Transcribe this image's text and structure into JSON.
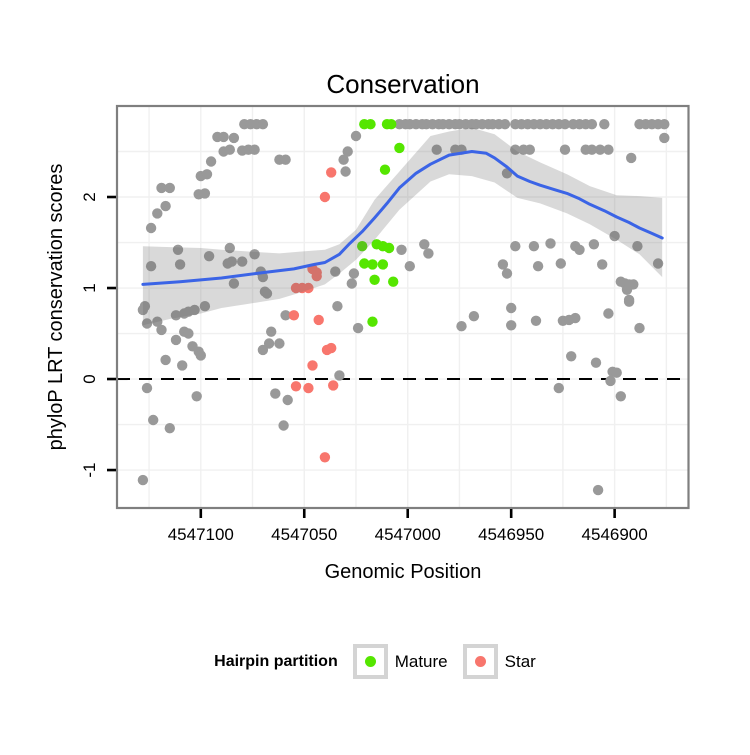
{
  "title": "Conservation",
  "axes": {
    "x": {
      "label": "Genomic Position",
      "domain": [
        4547140.5,
        4546864.3
      ],
      "ticks": [
        4547100,
        4547050,
        4547000,
        4546950,
        4546900
      ],
      "tick_labels": [
        "4547100",
        "4547050",
        "4547000",
        "4546950",
        "4546900"
      ],
      "grid_minor": [
        4547125,
        4547075,
        4547025,
        4546975,
        4546925,
        4546875
      ],
      "reversed": true
    },
    "y": {
      "label": "phyloP LRT conservation scores",
      "domain": [
        -1.417,
        3.0
      ],
      "ticks": [
        2,
        1,
        0,
        -1
      ],
      "tick_labels": [
        "2",
        "1",
        "0",
        "-1"
      ],
      "grid_minor": [
        2.5,
        1.5,
        0.5,
        -0.5
      ],
      "grid_major": [
        3,
        2,
        1,
        0,
        -1
      ]
    }
  },
  "legend": {
    "title": "Hairpin partition",
    "items": [
      {
        "label": "Mature",
        "color": "#55E600"
      },
      {
        "label": "Star",
        "color": "#F8766D"
      }
    ]
  },
  "colors": {
    "point_other": "#999999",
    "mature": "#55E600",
    "star": "#F8766D",
    "smooth_line": "#3B64E6",
    "ribbon": "rgba(102,102,102,0.25)",
    "panel_border": "#7F7F7F",
    "grid": "#F0F0F0",
    "zero_line": "#000000"
  },
  "chart_data": {
    "type": "scatter",
    "title": "Conservation",
    "xlabel": "Genomic Position",
    "ylabel": "phyloP LRT conservation scores",
    "x_range": [
      4547140,
      4546864
    ],
    "y_range": [
      -1.42,
      3.0
    ],
    "x_axis_reversed": true,
    "hline": {
      "y": 0,
      "style": "dashed"
    },
    "series": [
      {
        "name": "Other",
        "color": "#999999",
        "points": [
          [
            4547079,
            2.8
          ],
          [
            4547076,
            2.8
          ],
          [
            4547073,
            2.8
          ],
          [
            4547070,
            2.8
          ],
          [
            4547004,
            2.8
          ],
          [
            4547001,
            2.8
          ],
          [
            4546999,
            2.8
          ],
          [
            4546996,
            2.8
          ],
          [
            4546993,
            2.8
          ],
          [
            4546991,
            2.8
          ],
          [
            4546988,
            2.8
          ],
          [
            4546985,
            2.8
          ],
          [
            4546983,
            2.8
          ],
          [
            4546980,
            2.8
          ],
          [
            4546977,
            2.8
          ],
          [
            4546975,
            2.8
          ],
          [
            4546972,
            2.8
          ],
          [
            4546969,
            2.8
          ],
          [
            4546967,
            2.8
          ],
          [
            4546964,
            2.8
          ],
          [
            4546961,
            2.8
          ],
          [
            4546959,
            2.8
          ],
          [
            4546956,
            2.8
          ],
          [
            4546953,
            2.8
          ],
          [
            4546948,
            2.8
          ],
          [
            4546945,
            2.8
          ],
          [
            4546942,
            2.8
          ],
          [
            4546939,
            2.8
          ],
          [
            4546936,
            2.8
          ],
          [
            4546933,
            2.8
          ],
          [
            4546930,
            2.8
          ],
          [
            4546927,
            2.8
          ],
          [
            4546924,
            2.8
          ],
          [
            4546920,
            2.8
          ],
          [
            4546917,
            2.8
          ],
          [
            4546914,
            2.8
          ],
          [
            4546911,
            2.8
          ],
          [
            4546905,
            2.8
          ],
          [
            4546888,
            2.8
          ],
          [
            4546885,
            2.8
          ],
          [
            4546882,
            2.8
          ],
          [
            4546879,
            2.8
          ],
          [
            4546876,
            2.8
          ],
          [
            4547092,
            2.66
          ],
          [
            4547089,
            2.66
          ],
          [
            4547084,
            2.65
          ],
          [
            4547025,
            2.67
          ],
          [
            4546876,
            2.65
          ],
          [
            4547089,
            2.5
          ],
          [
            4547086,
            2.52
          ],
          [
            4547080,
            2.51
          ],
          [
            4547077,
            2.52
          ],
          [
            4547074,
            2.52
          ],
          [
            4546986,
            2.52
          ],
          [
            4546977,
            2.52
          ],
          [
            4546974,
            2.52
          ],
          [
            4546948,
            2.52
          ],
          [
            4546944,
            2.52
          ],
          [
            4546941,
            2.52
          ],
          [
            4546924,
            2.52
          ],
          [
            4546914,
            2.52
          ],
          [
            4546911,
            2.52
          ],
          [
            4546907,
            2.52
          ],
          [
            4546903,
            2.52
          ],
          [
            4546892,
            2.43
          ],
          [
            4547029,
            2.5
          ],
          [
            4547031,
            2.41
          ],
          [
            4547062,
            2.41
          ],
          [
            4547059,
            2.41
          ],
          [
            4547095,
            2.39
          ],
          [
            4547100,
            2.23
          ],
          [
            4547097,
            2.25
          ],
          [
            4547030,
            2.28
          ],
          [
            4546952,
            2.26
          ],
          [
            4547119,
            2.1
          ],
          [
            4547115,
            2.1
          ],
          [
            4547101,
            2.03
          ],
          [
            4547098,
            2.04
          ],
          [
            4547117,
            1.9
          ],
          [
            4547121,
            1.82
          ],
          [
            4547124,
            1.66
          ],
          [
            4546900,
            1.57
          ],
          [
            4547111,
            1.42
          ],
          [
            4547086,
            1.44
          ],
          [
            4547003,
            1.42
          ],
          [
            4546992,
            1.48
          ],
          [
            4546990,
            1.38
          ],
          [
            4546948,
            1.46
          ],
          [
            4546939,
            1.46
          ],
          [
            4546931,
            1.49
          ],
          [
            4546919,
            1.46
          ],
          [
            4546917,
            1.42
          ],
          [
            4546910,
            1.48
          ],
          [
            4546889,
            1.46
          ],
          [
            4547124,
            1.24
          ],
          [
            4547110,
            1.26
          ],
          [
            4547096,
            1.35
          ],
          [
            4547087,
            1.27
          ],
          [
            4547085,
            1.29
          ],
          [
            4547080,
            1.29
          ],
          [
            4547074,
            1.37
          ],
          [
            4546999,
            1.24
          ],
          [
            4546954,
            1.26
          ],
          [
            4546952,
            1.16
          ],
          [
            4546937,
            1.24
          ],
          [
            4546926,
            1.27
          ],
          [
            4546906,
            1.26
          ],
          [
            4546879,
            1.27
          ],
          [
            4547071,
            1.18
          ],
          [
            4547070,
            1.12
          ],
          [
            4547069,
            0.96
          ],
          [
            4547068,
            0.94
          ],
          [
            4547084,
            1.05
          ],
          [
            4547035,
            1.18
          ],
          [
            4547026,
            1.16
          ],
          [
            4547027,
            1.05
          ],
          [
            4546897,
            1.07
          ],
          [
            4546895,
            1.05
          ],
          [
            4546893,
            1.04
          ],
          [
            4546891,
            1.04
          ],
          [
            4546894,
            0.98
          ],
          [
            4546893,
            0.87
          ],
          [
            4547127,
            0.8
          ],
          [
            4547098,
            0.8
          ],
          [
            4547034,
            0.8
          ],
          [
            4546893,
            0.85
          ],
          [
            4547128,
            0.76
          ],
          [
            4547126,
            0.61
          ],
          [
            4547121,
            0.63
          ],
          [
            4547119,
            0.54
          ],
          [
            4547112,
            0.7
          ],
          [
            4547108,
            0.72
          ],
          [
            4547106,
            0.74
          ],
          [
            4547103,
            0.76
          ],
          [
            4547108,
            0.52
          ],
          [
            4547106,
            0.5
          ],
          [
            4547112,
            0.43
          ],
          [
            4547066,
            0.52
          ],
          [
            4547059,
            0.7
          ],
          [
            4547062,
            0.39
          ],
          [
            4547067,
            0.39
          ],
          [
            4547070,
            0.32
          ],
          [
            4547024,
            0.56
          ],
          [
            4546974,
            0.58
          ],
          [
            4546968,
            0.69
          ],
          [
            4546950,
            0.78
          ],
          [
            4546950,
            0.59
          ],
          [
            4546938,
            0.64
          ],
          [
            4546925,
            0.64
          ],
          [
            4546922,
            0.65
          ],
          [
            4546919,
            0.67
          ],
          [
            4546903,
            0.72
          ],
          [
            4546888,
            0.56
          ],
          [
            4547104,
            0.36
          ],
          [
            4547101,
            0.3
          ],
          [
            4547100,
            0.26
          ],
          [
            4547117,
            0.21
          ],
          [
            4547109,
            0.15
          ],
          [
            4546921,
            0.25
          ],
          [
            4546909,
            0.18
          ],
          [
            4546901,
            0.08
          ],
          [
            4546899,
            0.07
          ],
          [
            4547033,
            0.04
          ],
          [
            4546902,
            -0.02
          ],
          [
            4547126,
            -0.1
          ],
          [
            4547102,
            -0.19
          ],
          [
            4547064,
            -0.16
          ],
          [
            4547058,
            -0.23
          ],
          [
            4547060,
            -0.51
          ],
          [
            4547123,
            -0.45
          ],
          [
            4547115,
            -0.54
          ],
          [
            4546927,
            -0.1
          ],
          [
            4546897,
            -0.19
          ],
          [
            4547128,
            -1.11
          ],
          [
            4546908,
            -1.22
          ]
        ]
      },
      {
        "name": "Mature",
        "color": "#55E600",
        "points": [
          [
            4547021,
            2.8
          ],
          [
            4547018,
            2.8
          ],
          [
            4547010,
            2.8
          ],
          [
            4547008,
            2.8
          ],
          [
            4547004,
            2.54
          ],
          [
            4547011,
            2.3
          ],
          [
            4547022,
            1.46
          ],
          [
            4547015,
            1.48
          ],
          [
            4547012,
            1.46
          ],
          [
            4547009,
            1.44
          ],
          [
            4547021,
            1.27
          ],
          [
            4547017,
            1.26
          ],
          [
            4547012,
            1.26
          ],
          [
            4547016,
            1.09
          ],
          [
            4547007,
            1.07
          ],
          [
            4547017,
            0.63
          ]
        ]
      },
      {
        "name": "Star",
        "color": "#F8766D",
        "points": [
          [
            4547037,
            2.27
          ],
          [
            4547040,
            2.0
          ],
          [
            4547046,
            1.21
          ],
          [
            4547044,
            1.17
          ],
          [
            4547044,
            1.13
          ],
          [
            4547054,
            1.0
          ],
          [
            4547051,
            1.0
          ],
          [
            4547048,
            1.0
          ],
          [
            4547055,
            0.7
          ],
          [
            4547043,
            0.65
          ],
          [
            4547039,
            0.32
          ],
          [
            4547037,
            0.34
          ],
          [
            4547046,
            0.15
          ],
          [
            4547054,
            -0.08
          ],
          [
            4547048,
            -0.1
          ],
          [
            4547036,
            -0.07
          ],
          [
            4547040,
            -0.86
          ]
        ]
      }
    ],
    "smooth": {
      "color": "#3B64E6",
      "points": [
        [
          4547128,
          1.04
        ],
        [
          4547110,
          1.07
        ],
        [
          4547090,
          1.11
        ],
        [
          4547070,
          1.17
        ],
        [
          4547055,
          1.21
        ],
        [
          4547045,
          1.26
        ],
        [
          4547040,
          1.28
        ],
        [
          4547033,
          1.37
        ],
        [
          4547028,
          1.49
        ],
        [
          4547022,
          1.62
        ],
        [
          4547016,
          1.77
        ],
        [
          4547010,
          1.93
        ],
        [
          4547004,
          2.1
        ],
        [
          4546996,
          2.26
        ],
        [
          4546989,
          2.36
        ],
        [
          4546980,
          2.46
        ],
        [
          4546969,
          2.5
        ],
        [
          4546962,
          2.48
        ],
        [
          4546958,
          2.43
        ],
        [
          4546952,
          2.33
        ],
        [
          4546947,
          2.23
        ],
        [
          4546941,
          2.17
        ],
        [
          4546936,
          2.13
        ],
        [
          4546929,
          2.08
        ],
        [
          4546923,
          2.04
        ],
        [
          4546917,
          1.98
        ],
        [
          4546912,
          1.92
        ],
        [
          4546905,
          1.85
        ],
        [
          4546899,
          1.78
        ],
        [
          4546893,
          1.72
        ],
        [
          4546888,
          1.66
        ],
        [
          4546882,
          1.6
        ],
        [
          4546877,
          1.55
        ]
      ]
    },
    "ribbon": [
      [
        4547128,
        0.59,
        1.46
      ],
      [
        4547115,
        0.66,
        1.45
      ],
      [
        4547100,
        0.72,
        1.44
      ],
      [
        4547090,
        0.78,
        1.42
      ],
      [
        4547076,
        0.83,
        1.4
      ],
      [
        4547062,
        0.88,
        1.38
      ],
      [
        4547052,
        0.95,
        1.4
      ],
      [
        4547040,
        1.04,
        1.42
      ],
      [
        4547033,
        1.16,
        1.48
      ],
      [
        4547025,
        1.31,
        1.64
      ],
      [
        4547016,
        1.53,
        1.97
      ],
      [
        4547004,
        1.86,
        2.28
      ],
      [
        4546989,
        2.17,
        2.67
      ],
      [
        4546980,
        2.25,
        2.72
      ],
      [
        4546969,
        2.23,
        2.76
      ],
      [
        4546958,
        2.16,
        2.69
      ],
      [
        4546947,
        1.99,
        2.5
      ],
      [
        4546936,
        1.93,
        2.38
      ],
      [
        4546923,
        1.82,
        2.25
      ],
      [
        4546912,
        1.7,
        2.12
      ],
      [
        4546899,
        1.53,
        2.02
      ],
      [
        4546888,
        1.37,
        2.01
      ],
      [
        4546877,
        1.12,
        1.99
      ]
    ]
  }
}
